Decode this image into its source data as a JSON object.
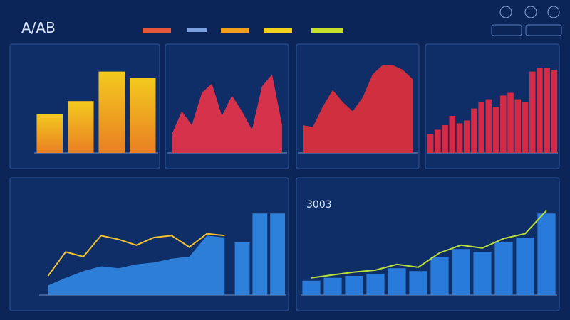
{
  "header": {
    "title": "A/AB"
  },
  "panels": [
    {
      "type": "bar",
      "ylim": [
        0,
        100
      ],
      "series": [
        {
          "kind": "bar",
          "color": "#f7b515",
          "values": [
            42,
            56,
            88,
            81
          ]
        }
      ]
    },
    {
      "type": "area",
      "ylim": [
        0,
        100
      ],
      "series": [
        {
          "kind": "area",
          "color": "#e8334a",
          "values": [
            20,
            45,
            30,
            65,
            75,
            40,
            62,
            45,
            25,
            72,
            85,
            30
          ]
        }
      ]
    },
    {
      "type": "area",
      "ylim": [
        0,
        100
      ],
      "series": [
        {
          "kind": "area",
          "color": "#e0303c",
          "values": [
            30,
            28,
            50,
            68,
            55,
            45,
            60,
            85,
            95,
            95,
            90,
            80
          ]
        }
      ]
    },
    {
      "type": "bar",
      "ylim": [
        0,
        100
      ],
      "series": [
        {
          "kind": "bar",
          "color": "#e02a45",
          "values": [
            20,
            25,
            30,
            40,
            32,
            35,
            48,
            55,
            58,
            50,
            62,
            65,
            58,
            55,
            88,
            92,
            92,
            90
          ]
        }
      ]
    },
    {
      "type": "combo",
      "ylim": [
        0,
        100
      ],
      "series": [
        {
          "kind": "area",
          "color": "#2f86e0",
          "values": [
            10,
            18,
            25,
            30,
            28,
            32,
            34,
            38,
            40,
            62,
            60,
            null,
            null,
            null
          ]
        },
        {
          "kind": "line",
          "color": "#f2c230",
          "values": [
            20,
            45,
            40,
            62,
            58,
            52,
            60,
            62,
            50,
            64,
            62,
            null,
            null,
            null
          ]
        },
        {
          "kind": "bar",
          "color": "#2f86e0",
          "values": [
            null,
            null,
            null,
            null,
            null,
            null,
            null,
            null,
            null,
            null,
            null,
            55,
            85,
            85
          ]
        }
      ]
    },
    {
      "type": "combo",
      "label": "3003",
      "ylim": [
        0,
        100
      ],
      "series": [
        {
          "kind": "bar",
          "color": "#2a7fe0",
          "values": [
            15,
            18,
            20,
            22,
            28,
            25,
            40,
            48,
            45,
            55,
            60,
            85
          ]
        },
        {
          "kind": "line",
          "color": "#b8e03a",
          "values": [
            18,
            21,
            24,
            26,
            32,
            29,
            44,
            52,
            49,
            59,
            64,
            88
          ]
        }
      ]
    }
  ]
}
